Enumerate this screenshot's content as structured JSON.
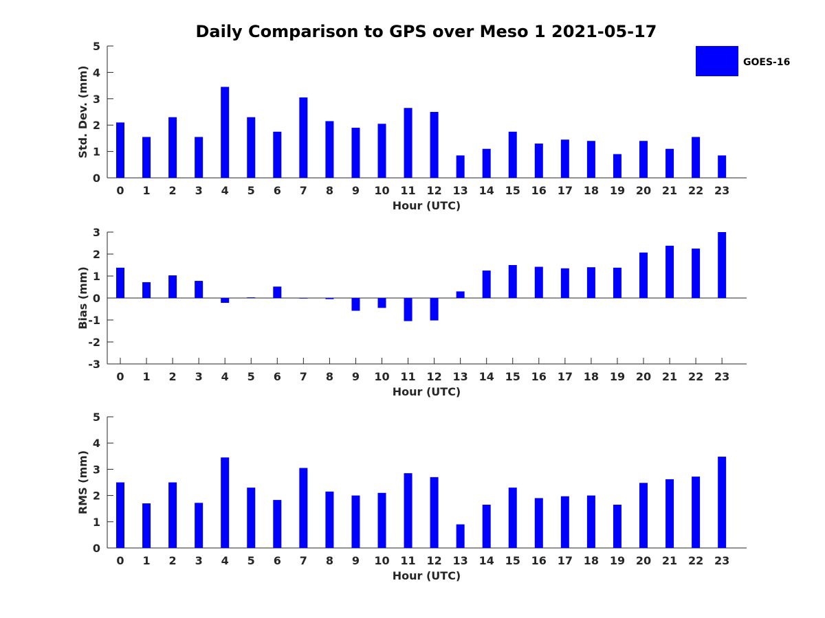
{
  "chart_data": {
    "type": "bar",
    "title": "Daily Comparison to GPS over Meso 1 2021-05-17",
    "legend": {
      "label": "GOES-16",
      "color": "#0000ff",
      "placement": "top-right"
    },
    "categories": [
      "0",
      "1",
      "2",
      "3",
      "4",
      "5",
      "6",
      "7",
      "8",
      "9",
      "10",
      "11",
      "12",
      "13",
      "14",
      "15",
      "16",
      "17",
      "18",
      "19",
      "20",
      "21",
      "22",
      "23"
    ],
    "panels": [
      {
        "name": "std-dev",
        "ylabel": "Std. Dev. (mm)",
        "xlabel": "Hour (UTC)",
        "ylim": [
          0,
          5
        ],
        "yticks": [
          0,
          1,
          2,
          3,
          4,
          5
        ],
        "series": [
          {
            "name": "GOES-16",
            "values": [
              2.1,
              1.55,
              2.3,
              1.55,
              3.45,
              2.3,
              1.75,
              3.05,
              2.15,
              1.9,
              2.05,
              2.65,
              2.5,
              0.85,
              1.1,
              1.75,
              1.3,
              1.45,
              1.4,
              0.9,
              1.4,
              1.1,
              1.55,
              0.85
            ]
          }
        ]
      },
      {
        "name": "bias",
        "ylabel": "Bias (mm)",
        "xlabel": "Hour (UTC)",
        "ylim": [
          -3,
          3
        ],
        "yticks": [
          -3,
          -2,
          -1,
          0,
          1,
          2,
          3
        ],
        "zero_line": true,
        "series": [
          {
            "name": "GOES-16",
            "values": [
              1.38,
              0.72,
              1.03,
              0.78,
              -0.22,
              0.03,
              0.52,
              0.0,
              -0.05,
              -0.58,
              -0.45,
              -1.05,
              -1.02,
              0.3,
              1.25,
              1.5,
              1.42,
              1.35,
              1.4,
              1.38,
              2.07,
              2.38,
              2.25,
              3.0
            ]
          }
        ]
      },
      {
        "name": "rms",
        "ylabel": "RMS (mm)",
        "xlabel": "Hour (UTC)",
        "ylim": [
          0,
          5
        ],
        "yticks": [
          0,
          1,
          2,
          3,
          4,
          5
        ],
        "series": [
          {
            "name": "GOES-16",
            "values": [
              2.5,
              1.7,
              2.5,
              1.72,
              3.45,
              2.3,
              1.83,
              3.05,
              2.15,
              2.0,
              2.1,
              2.85,
              2.7,
              0.9,
              1.65,
              2.3,
              1.9,
              1.97,
              2.0,
              1.65,
              2.48,
              2.62,
              2.72,
              3.48
            ]
          }
        ]
      }
    ]
  }
}
